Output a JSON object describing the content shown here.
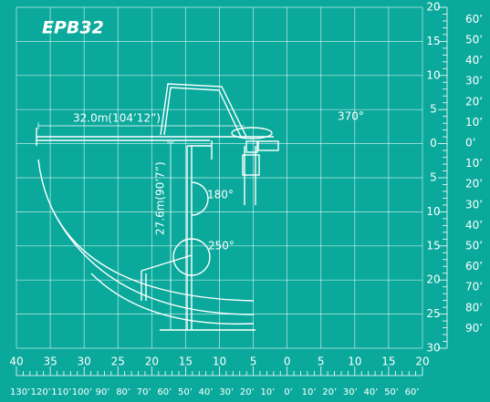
{
  "title": "EPB32",
  "annotations": {
    "horizontal_reach": "32.0m(104’12”)",
    "vertical_reach": "27.6m(90’7”)",
    "rotation_top": "370°",
    "rotation_middle": "180°",
    "rotation_lower": "250°"
  },
  "axes": {
    "bottom_meters": [
      "40",
      "35",
      "30",
      "25",
      "20",
      "15",
      "10",
      "5",
      "0",
      "5",
      "10",
      "15",
      "20"
    ],
    "bottom_feet": [
      "130’",
      "120’",
      "110’",
      "100’",
      "90’",
      "80’",
      "70’",
      "60’",
      "50’",
      "40’",
      "30’",
      "20’",
      "10’",
      "0’",
      "10’",
      "20’",
      "30’",
      "40’",
      "50’",
      "60’"
    ],
    "right_meters": [
      "20",
      "15",
      "10",
      "5",
      "0",
      "5",
      "10",
      "15",
      "20",
      "25",
      "30"
    ],
    "right_feet": [
      "60’",
      "50’",
      "40’",
      "30’",
      "20’",
      "10’",
      "0’",
      "10’",
      "20’",
      "30’",
      "40’",
      "50’",
      "60’",
      "70’",
      "80’",
      "90’"
    ]
  }
}
